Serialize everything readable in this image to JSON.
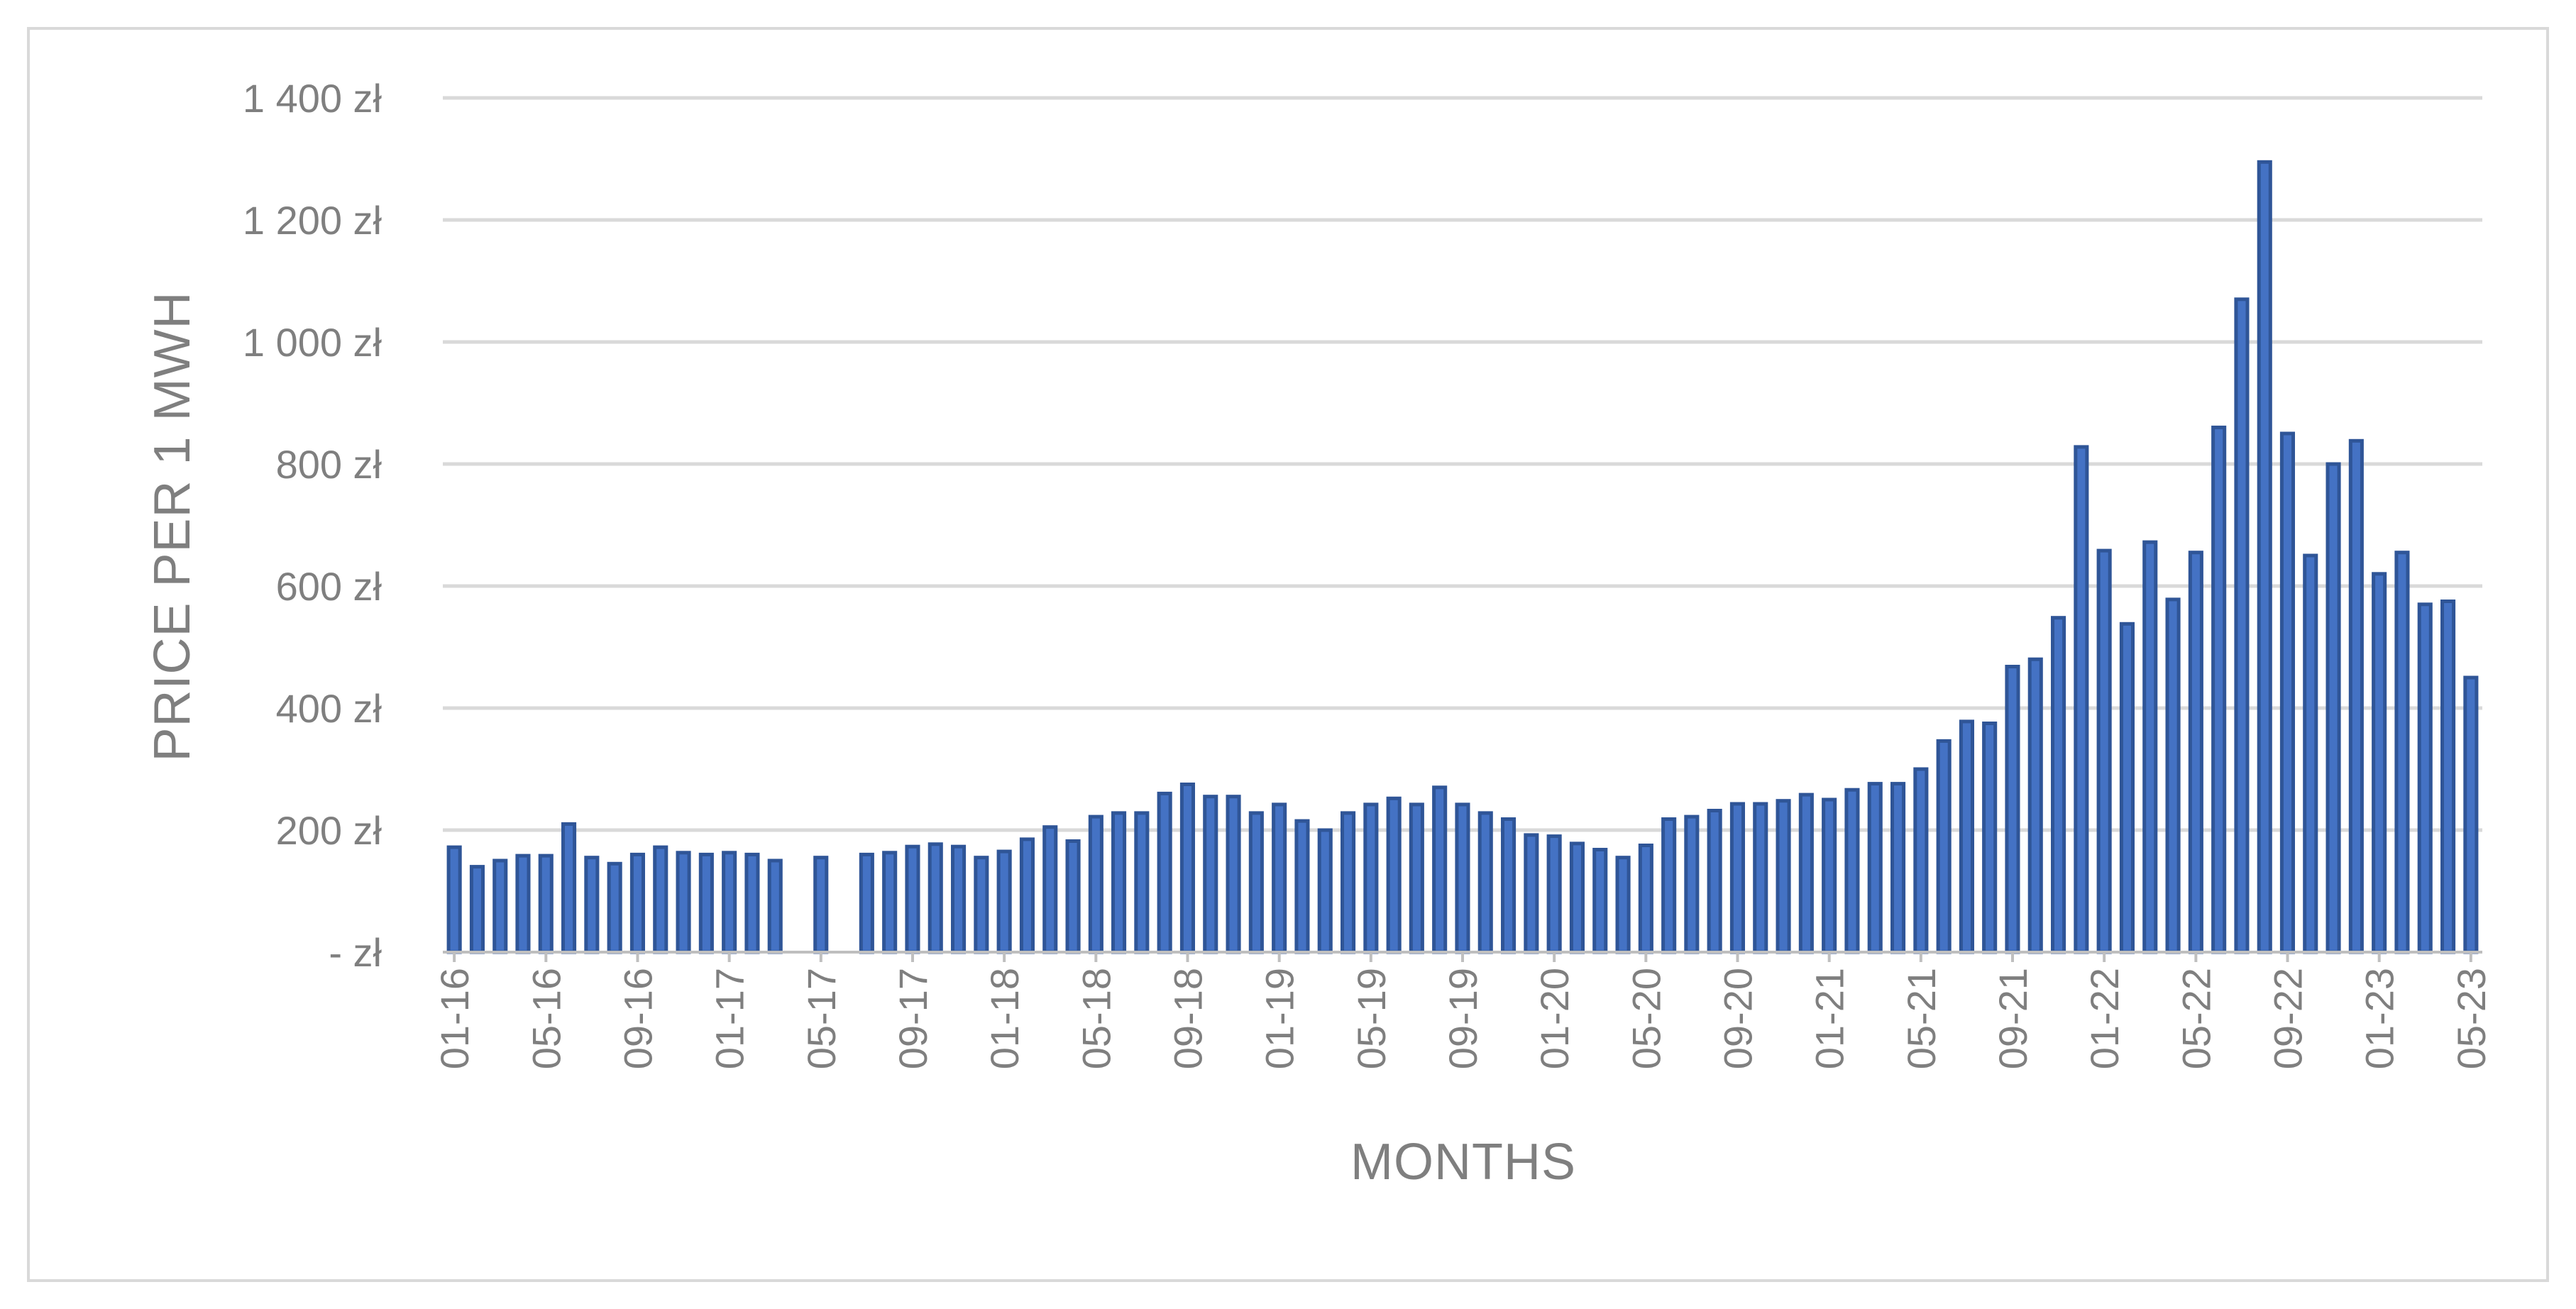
{
  "chart_data": {
    "type": "bar",
    "xlabel": "MONTHS",
    "ylabel": "PRICE PER 1 MWH",
    "ylim": [
      0,
      1400
    ],
    "y_ticks": [
      0,
      200,
      400,
      600,
      800,
      1000,
      1200,
      1400
    ],
    "y_tick_labels": [
      "-   zł",
      "200 zł",
      "400 zł",
      "600 zł",
      "800 zł",
      "1 000 zł",
      "1 200 zł",
      "1 400 zł"
    ],
    "x_tick_labels": [
      "01-16",
      "05-16",
      "09-16",
      "01-17",
      "05-17",
      "09-17",
      "01-18",
      "05-18",
      "09-18",
      "01-19",
      "05-19",
      "09-19",
      "01-20",
      "05-20",
      "09-20",
      "01-21",
      "05-21",
      "09-21",
      "01-22",
      "05-22",
      "09-22",
      "01-23",
      "05-23"
    ],
    "grid": true,
    "legend": "none",
    "bar_fill": "#4472c4",
    "bar_edge": "#2f5597",
    "categories": [
      "01-16",
      "02-16",
      "03-16",
      "04-16",
      "05-16",
      "06-16",
      "07-16",
      "08-16",
      "09-16",
      "10-16",
      "11-16",
      "12-16",
      "01-17",
      "02-17",
      "03-17",
      "04-17",
      "05-17",
      "06-17",
      "07-17",
      "08-17",
      "09-17",
      "10-17",
      "11-17",
      "12-17",
      "01-18",
      "02-18",
      "03-18",
      "04-18",
      "05-18",
      "06-18",
      "07-18",
      "08-18",
      "09-18",
      "10-18",
      "11-18",
      "12-18",
      "01-19",
      "02-19",
      "03-19",
      "04-19",
      "05-19",
      "06-19",
      "07-19",
      "08-19",
      "09-19",
      "10-19",
      "11-19",
      "12-19",
      "01-20",
      "02-20",
      "03-20",
      "04-20",
      "05-20",
      "06-20",
      "07-20",
      "08-20",
      "09-20",
      "10-20",
      "11-20",
      "12-20",
      "01-21",
      "02-21",
      "03-21",
      "04-21",
      "05-21",
      "06-21",
      "07-21",
      "08-21",
      "09-21",
      "10-21",
      "11-21",
      "12-21",
      "01-22",
      "02-22",
      "03-22",
      "04-22",
      "05-22",
      "06-22",
      "07-22",
      "08-22",
      "09-22",
      "10-22",
      "11-22",
      "12-22",
      "01-23",
      "02-23",
      "03-23",
      "04-23",
      "05-23"
    ],
    "values": [
      172,
      140,
      150,
      158,
      158,
      210,
      155,
      145,
      160,
      172,
      163,
      160,
      163,
      160,
      150,
      0,
      155,
      0,
      160,
      163,
      173,
      177,
      173,
      155,
      165,
      185,
      205,
      182,
      222,
      228,
      228,
      260,
      275,
      255,
      255,
      228,
      242,
      215,
      200,
      228,
      242,
      252,
      242,
      270,
      242,
      228,
      218,
      192,
      190,
      178,
      168,
      155,
      175,
      218,
      222,
      232,
      243,
      243,
      248,
      258,
      250,
      266,
      276,
      276,
      300,
      346,
      378,
      375,
      468,
      480,
      548,
      828,
      658,
      538,
      672,
      578,
      655,
      860,
      1070,
      1295,
      850,
      650,
      800,
      838,
      620,
      655,
      570,
      575,
      450
    ]
  }
}
